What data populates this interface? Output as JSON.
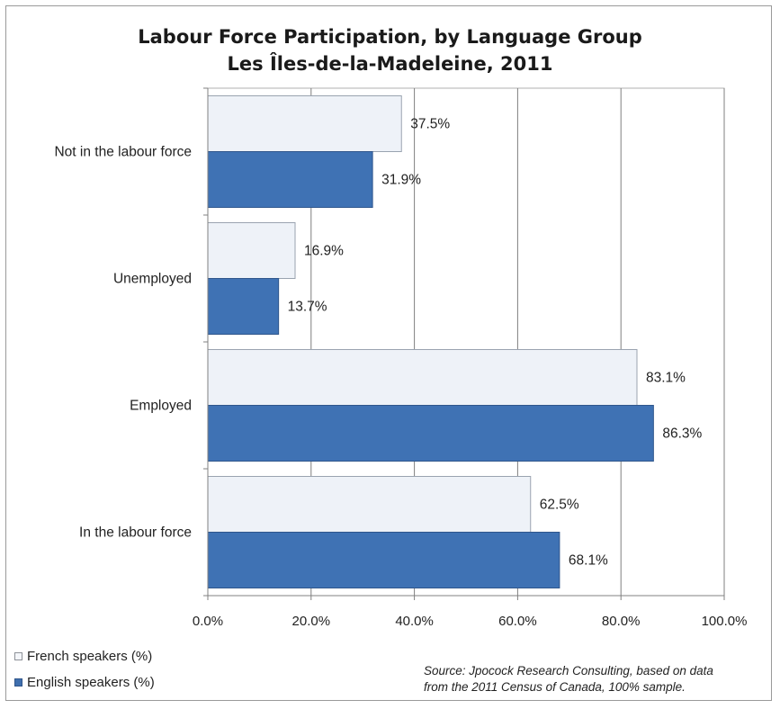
{
  "title_line1": "Labour Force Participation, by Language Group",
  "title_line2": "Les Îles-de-la-Madeleine, 2011",
  "legend": {
    "french": "French speakers (%)",
    "english": "English speakers (%)"
  },
  "source_line1": "Source: Jpocock Research Consulting, based on data",
  "source_line2": "from the 2011 Census of Canada, 100% sample.",
  "colors": {
    "french_fill": "#eef2f8",
    "english_fill": "#3f72b4",
    "gridline": "#7f7f7f",
    "axis": "#808080"
  },
  "chart_data": {
    "type": "bar",
    "orientation": "horizontal",
    "title": "Labour Force Participation, by Language Group Les Îles-de-la-Madeleine, 2011",
    "categories": [
      "Not in the labour force",
      "Unemployed",
      "Employed",
      "In the labour force"
    ],
    "series": [
      {
        "name": "French speakers (%)",
        "values": [
          37.5,
          16.9,
          83.1,
          62.5
        ]
      },
      {
        "name": "English speakers (%)",
        "values": [
          31.9,
          13.7,
          86.3,
          68.1
        ]
      }
    ],
    "data_labels": {
      "french": [
        "37.5%",
        "16.9%",
        "83.1%",
        "62.5%"
      ],
      "english": [
        "31.9%",
        "13.7%",
        "86.3%",
        "68.1%"
      ]
    },
    "xlim": [
      0,
      100
    ],
    "xticks": [
      "0.0%",
      "20.0%",
      "40.0%",
      "60.0%",
      "80.0%",
      "100.0%"
    ],
    "xlabel": "",
    "ylabel": "",
    "grid": true,
    "legend_position": "bottom-left"
  }
}
